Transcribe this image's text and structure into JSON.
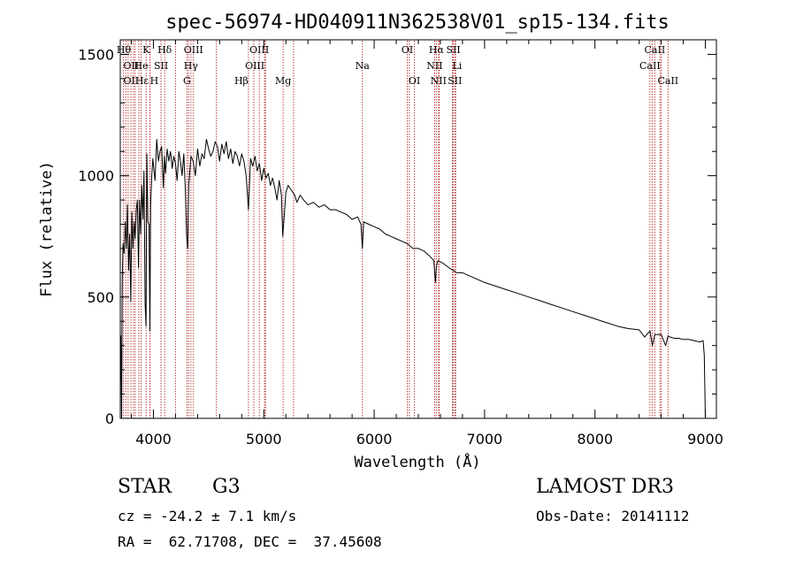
{
  "chart_data": {
    "type": "line",
    "title": "spec-56974-HD040911N362538V01_sp15-134.fits",
    "xlabel": "Wavelength (Å)",
    "ylabel": "Flux (relative)",
    "xlim": [
      3700,
      9100
    ],
    "ylim": [
      0,
      1560
    ],
    "xticks": [
      4000,
      5000,
      6000,
      7000,
      8000,
      9000
    ],
    "yticks": [
      0,
      500,
      1000,
      1500
    ],
    "xminor_step": 200,
    "yminor_step": 100,
    "series": [
      {
        "name": "flux",
        "x": [
          3700,
          3705,
          3712,
          3718,
          3725,
          3735,
          3745,
          3755,
          3765,
          3775,
          3785,
          3795,
          3805,
          3815,
          3825,
          3835,
          3845,
          3855,
          3865,
          3875,
          3885,
          3895,
          3905,
          3915,
          3925,
          3933,
          3940,
          3950,
          3960,
          3968,
          3975,
          3985,
          3995,
          4005,
          4015,
          4030,
          4045,
          4060,
          4075,
          4090,
          4100,
          4110,
          4125,
          4140,
          4155,
          4170,
          4185,
          4200,
          4215,
          4230,
          4245,
          4260,
          4275,
          4290,
          4300,
          4310,
          4320,
          4340,
          4360,
          4380,
          4400,
          4420,
          4440,
          4460,
          4480,
          4500,
          4520,
          4540,
          4560,
          4580,
          4600,
          4620,
          4640,
          4660,
          4680,
          4700,
          4720,
          4740,
          4760,
          4780,
          4800,
          4820,
          4840,
          4861,
          4880,
          4900,
          4920,
          4940,
          4960,
          4980,
          5000,
          5020,
          5040,
          5060,
          5080,
          5100,
          5120,
          5140,
          5160,
          5172,
          5183,
          5200,
          5220,
          5250,
          5280,
          5300,
          5330,
          5360,
          5400,
          5450,
          5500,
          5550,
          5600,
          5650,
          5700,
          5750,
          5800,
          5850,
          5880,
          5893,
          5905,
          5950,
          6000,
          6050,
          6100,
          6150,
          6200,
          6250,
          6300,
          6350,
          6400,
          6450,
          6500,
          6540,
          6555,
          6563,
          6570,
          6580,
          6620,
          6680,
          6750,
          6800,
          6900,
          7000,
          7100,
          7200,
          7300,
          7400,
          7500,
          7600,
          7700,
          7800,
          7900,
          8000,
          8100,
          8200,
          8300,
          8400,
          8450,
          8498,
          8520,
          8542,
          8560,
          8600,
          8640,
          8662,
          8680,
          8720,
          8760,
          8800,
          8850,
          8900,
          8950,
          8980,
          8990,
          9000
        ],
        "values": [
          150,
          340,
          0,
          560,
          720,
          680,
          810,
          700,
          880,
          610,
          760,
          480,
          850,
          700,
          810,
          740,
          860,
          900,
          620,
          900,
          760,
          960,
          820,
          1020,
          470,
          380,
          1090,
          810,
          800,
          360,
          880,
          1000,
          1070,
          1020,
          980,
          1150,
          1060,
          1100,
          1120,
          950,
          1080,
          1010,
          1110,
          1060,
          1100,
          1030,
          1080,
          1050,
          980,
          1100,
          1060,
          1000,
          1090,
          940,
          760,
          700,
          960,
          1080,
          1060,
          1000,
          1110,
          1040,
          1090,
          1070,
          1150,
          1110,
          1080,
          1100,
          1140,
          1120,
          1060,
          1130,
          1090,
          1140,
          1070,
          1110,
          1050,
          1100,
          1080,
          1040,
          1090,
          1060,
          1000,
          860,
          1070,
          1040,
          1080,
          1020,
          1050,
          980,
          1030,
          990,
          1010,
          960,
          990,
          950,
          900,
          980,
          920,
          750,
          820,
          930,
          960,
          940,
          920,
          890,
          920,
          900,
          880,
          890,
          870,
          880,
          860,
          860,
          850,
          840,
          820,
          830,
          800,
          700,
          810,
          800,
          790,
          780,
          760,
          750,
          740,
          730,
          720,
          700,
          700,
          690,
          670,
          650,
          560,
          620,
          640,
          650,
          640,
          620,
          600,
          600,
          580,
          560,
          545,
          530,
          515,
          500,
          485,
          470,
          455,
          440,
          425,
          410,
          395,
          380,
          370,
          365,
          335,
          360,
          300,
          345,
          345,
          345,
          300,
          340,
          335,
          330,
          330,
          325,
          325,
          320,
          315,
          320,
          260,
          0
        ]
      }
    ],
    "line_markers": [
      {
        "label": "Hθ",
        "x": 3797,
        "row": 0,
        "anchor": "end"
      },
      {
        "label": "K",
        "x": 3934,
        "row": 0,
        "anchor": "middle"
      },
      {
        "label": "Hδ",
        "x": 4102,
        "row": 0,
        "anchor": "middle"
      },
      {
        "label": "OIII",
        "x": 4363,
        "row": 0,
        "anchor": "middle"
      },
      {
        "label": "OIII",
        "x": 4959,
        "row": 0,
        "anchor": "middle"
      },
      {
        "label": "OI",
        "x": 6300,
        "row": 0,
        "anchor": "middle"
      },
      {
        "label": "Hα",
        "x": 6563,
        "row": 0,
        "anchor": "middle"
      },
      {
        "label": "SII",
        "x": 6717,
        "row": 0,
        "anchor": "middle"
      },
      {
        "label": "CaII",
        "x": 8542,
        "row": 0,
        "anchor": "middle"
      },
      {
        "label": "OII",
        "x": 3727,
        "row": 1,
        "anchor": "start"
      },
      {
        "label": "He",
        "x": 3889,
        "row": 1,
        "anchor": "middle"
      },
      {
        "label": "SII",
        "x": 4069,
        "row": 1,
        "anchor": "middle"
      },
      {
        "label": "Hγ",
        "x": 4340,
        "row": 1,
        "anchor": "middle"
      },
      {
        "label": "OIII",
        "x": 5007,
        "row": 1,
        "anchor": "end"
      },
      {
        "label": "Na",
        "x": 5893,
        "row": 1,
        "anchor": "middle"
      },
      {
        "label": "NII",
        "x": 6548,
        "row": 1,
        "anchor": "middle"
      },
      {
        "label": "Li",
        "x": 6708,
        "row": 1,
        "anchor": "start"
      },
      {
        "label": "CaII",
        "x": 8498,
        "row": 1,
        "anchor": "middle"
      },
      {
        "label": "OII",
        "x": 3727,
        "row": 2,
        "anchor": "start"
      },
      {
        "label": "Hε",
        "x": 3835,
        "row": 2,
        "anchor": "start"
      },
      {
        "label": "H",
        "x": 3969,
        "row": 2,
        "anchor": "start"
      },
      {
        "label": "G",
        "x": 4304,
        "row": 2,
        "anchor": "middle"
      },
      {
        "label": "Hβ",
        "x": 4861,
        "row": 2,
        "anchor": "end"
      },
      {
        "label": "Mg",
        "x": 5175,
        "row": 2,
        "anchor": "middle"
      },
      {
        "label": "OI",
        "x": 6364,
        "row": 2,
        "anchor": "middle"
      },
      {
        "label": "NII",
        "x": 6583,
        "row": 2,
        "anchor": "middle"
      },
      {
        "label": "SII",
        "x": 6731,
        "row": 2,
        "anchor": "middle"
      },
      {
        "label": "CaII",
        "x": 8662,
        "row": 2,
        "anchor": "middle"
      }
    ],
    "extra_marker_lines": [
      3750,
      3771,
      3820,
      3868,
      3970,
      4200,
      4318,
      4571,
      4910,
      5015,
      5270,
      6318,
      6590,
      6738,
      8518,
      8588,
      8600
    ]
  },
  "info": {
    "object_class": "STAR",
    "subclass": "G3",
    "survey": "LAMOST DR3",
    "redshift": "cz = -24.2 ± 7.1 km/s",
    "obs_date": "Obs-Date: 20141112",
    "coords": "RA =  62.71708, DEC =  37.45608"
  },
  "colors": {
    "spectrum": "#000000",
    "marker_lines": "#b52a2a",
    "axes": "#000000"
  }
}
